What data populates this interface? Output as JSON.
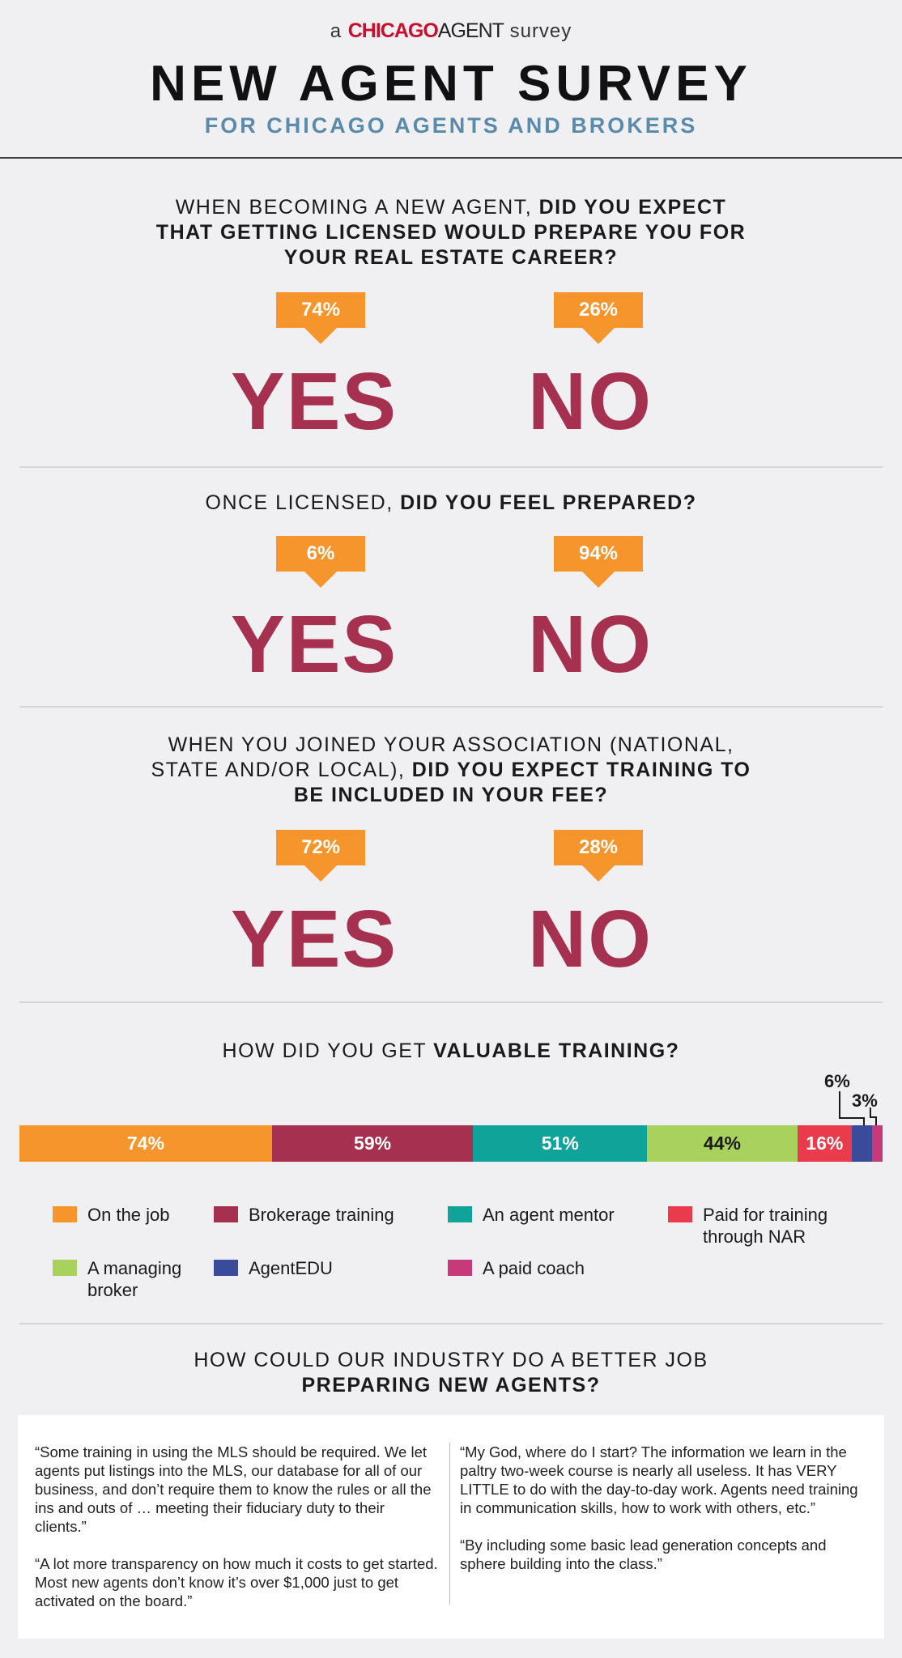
{
  "header": {
    "pre": "a",
    "brand_chicago": "CHICAGO",
    "brand_agent": "AGENT",
    "post": "survey",
    "title": "NEW AGENT SURVEY",
    "subtitle": "FOR CHICAGO AGENTS AND BROKERS"
  },
  "questions": [
    {
      "line1_normal": "WHEN BECOMING A NEW AGENT, ",
      "line1_bold": "DID YOU EXPECT",
      "line2_bold": "THAT GETTING LICENSED WOULD PREPARE YOU FOR",
      "line3_bold": "YOUR REAL ESTATE CAREER?",
      "yes_pct": "74%",
      "no_pct": "26%",
      "yes_label": "YES",
      "no_label": "NO"
    },
    {
      "line1_normal": "ONCE LICENSED, ",
      "line1_bold": "DID YOU FEEL PREPARED?",
      "yes_pct": "6%",
      "no_pct": "94%",
      "yes_label": "YES",
      "no_label": "NO"
    },
    {
      "line1_normal": "WHEN YOU JOINED YOUR ASSOCIATION (NATIONAL,",
      "line2_normal": "STATE AND/OR LOCAL), ",
      "line2_bold": "DID YOU EXPECT TRAINING TO",
      "line3_bold": "BE INCLUDED IN YOUR FEE?",
      "yes_pct": "72%",
      "no_pct": "28%",
      "yes_label": "YES",
      "no_label": "NO"
    }
  ],
  "training": {
    "q_normal": "HOW DID YOU GET ",
    "q_bold": "VALUABLE TRAINING?"
  },
  "chart_data": {
    "type": "bar",
    "orientation": "horizontal-stacked",
    "series": [
      {
        "name": "On the job",
        "value": 74,
        "label": "74%",
        "color": "#f5952b"
      },
      {
        "name": "Brokerage training",
        "value": 59,
        "label": "59%",
        "color": "#a6304f"
      },
      {
        "name": "An agent mentor",
        "value": 51,
        "label": "51%",
        "color": "#0fa39a"
      },
      {
        "name": "A managing broker",
        "value": 44,
        "label": "44%",
        "color": "#a9d15e"
      },
      {
        "name": "Paid for training through NAR",
        "value": 16,
        "label": "16%",
        "color": "#e93b4b"
      },
      {
        "name": "AgentEDU",
        "value": 6,
        "label": "6%",
        "color": "#3a4b9c"
      },
      {
        "name": "A paid coach",
        "value": 3,
        "label": "3%",
        "color": "#c73a7a"
      }
    ],
    "legend": {
      "col1": [
        "On the job",
        "A managing broker"
      ],
      "col2": [
        "Brokerage training",
        "AgentEDU"
      ],
      "col3": [
        "An agent mentor",
        "A paid coach"
      ],
      "col4": [
        "Paid for training through NAR"
      ]
    }
  },
  "industry": {
    "line1": "HOW COULD OUR INDUSTRY DO A BETTER JOB",
    "line2": "PREPARING NEW AGENTS?"
  },
  "quotes": {
    "left": [
      "“Some training in using the MLS should be required. We let agents put listings into the MLS, our database for all of our business, and don’t require them to know the rules or all the ins and outs of … meeting their fiduciary duty to their clients.”",
      "“A lot more transparency on how much it costs to get started. Most new agents don’t know it’s over $1,000 just to get activated on the board.”"
    ],
    "right": [
      "“My God, where do I start? The information we learn in the paltry two-week course is nearly all useless. It has VERY LITTLE to do with the day-to-day work. Agents need training in communication skills, how to work with others, etc.”",
      "“By including some basic lead generation concepts and sphere building into the class.”"
    ]
  }
}
